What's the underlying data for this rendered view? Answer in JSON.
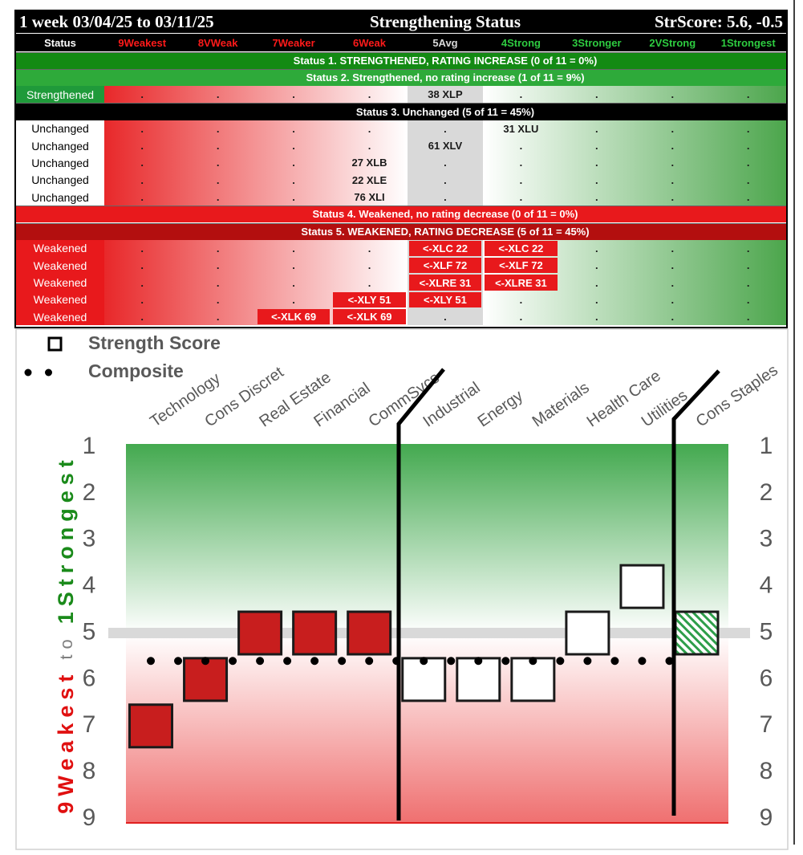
{
  "header": {
    "period": "1 week 03/04/25 to 03/11/25",
    "title": "Strengthening Status",
    "score": "StrScore: 5.6, -0.5"
  },
  "table": {
    "columns": [
      "Status",
      "9Weakest",
      "8VWeak",
      "7Weaker",
      "6Weak",
      "5Avg",
      "4Strong",
      "3Stronger",
      "2VStrong",
      "1Strongest"
    ],
    "column_colors": [
      "#ffffff",
      "#ff1a1a",
      "#ff1a1a",
      "#ff1a1a",
      "#ff1a1a",
      "#d9d9d9",
      "#2ecc40",
      "#2ecc40",
      "#2ecc40",
      "#2ecc40"
    ],
    "sections": [
      {
        "band": "Status 1. STRENGTHENED, RATING INCREASE (0 of 11 = 0%)",
        "color": "#138a13",
        "row_color": "#1f9a3a",
        "rows": []
      },
      {
        "band": "Status 2. Strengthened, no rating increase (1 of 11 = 9%)",
        "color": "#2eaa3a",
        "row_color": "#1f9a3a",
        "rows": [
          {
            "status": "Strengthened",
            "cells": [
              ".",
              ".",
              ".",
              ".",
              "38 XLP",
              ".",
              ".",
              ".",
              "."
            ]
          }
        ]
      },
      {
        "band": "Status 3. Unchanged (5 of 11 = 45%)",
        "color": "#000000",
        "row_color": "#ffffff",
        "rows": [
          {
            "status": "Unchanged",
            "cells": [
              ".",
              ".",
              ".",
              ".",
              ".",
              "31 XLU",
              ".",
              ".",
              "."
            ]
          },
          {
            "status": "Unchanged",
            "cells": [
              ".",
              ".",
              ".",
              ".",
              "61 XLV",
              ".",
              ".",
              ".",
              "."
            ]
          },
          {
            "status": "Unchanged",
            "cells": [
              ".",
              ".",
              ".",
              "27 XLB",
              ".",
              ".",
              ".",
              ".",
              "."
            ]
          },
          {
            "status": "Unchanged",
            "cells": [
              ".",
              ".",
              ".",
              "22 XLE",
              ".",
              ".",
              ".",
              ".",
              "."
            ]
          },
          {
            "status": "Unchanged",
            "cells": [
              ".",
              ".",
              ".",
              "76 XLI",
              ".",
              ".",
              ".",
              ".",
              "."
            ]
          }
        ]
      },
      {
        "band": "Status 4. Weakened, no rating decrease (0 of 11 = 0%)",
        "color": "#e8191c",
        "row_color": "#e8191c",
        "rows": []
      },
      {
        "band": "Status 5. WEAKENED, RATING DECREASE (5 of 11 = 45%)",
        "color": "#b30f0f",
        "row_color": "#e8191c",
        "rows": [
          {
            "status": "Weakened",
            "cells": [
              ".",
              ".",
              ".",
              ".",
              "<-XLC 22",
              "<-XLC 22",
              ".",
              ".",
              "."
            ]
          },
          {
            "status": "Weakened",
            "cells": [
              ".",
              ".",
              ".",
              ".",
              "<-XLF 72",
              "<-XLF 72",
              ".",
              ".",
              "."
            ]
          },
          {
            "status": "Weakened",
            "cells": [
              ".",
              ".",
              ".",
              ".",
              "<-XLRE 31",
              "<-XLRE 31",
              ".",
              ".",
              "."
            ]
          },
          {
            "status": "Weakened",
            "cells": [
              ".",
              ".",
              ".",
              "<-XLY 51",
              "<-XLY 51",
              ".",
              ".",
              ".",
              "."
            ]
          },
          {
            "status": "Weakened",
            "cells": [
              ".",
              ".",
              "<-XLK 69",
              "<-XLK 69",
              ".",
              ".",
              ".",
              ".",
              "."
            ]
          }
        ]
      }
    ]
  },
  "chart_data": {
    "type": "scatter",
    "categories": [
      "Technology",
      "Cons Discret",
      "Real Estate",
      "Financial",
      "CommSvcs",
      "Industrial",
      "Energy",
      "Materials",
      "Health Care",
      "Utilities",
      "Cons Staples"
    ],
    "series": [
      {
        "name": "Strength Score",
        "values": [
          7,
          6,
          5,
          5,
          5,
          6,
          6,
          6,
          5,
          4,
          5
        ],
        "fills": [
          "#c81e1e",
          "#c81e1e",
          "#c81e1e",
          "#c81e1e",
          "#c81e1e",
          "#ffffff",
          "#ffffff",
          "#ffffff",
          "#ffffff",
          "#ffffff",
          "hatch"
        ]
      },
      {
        "name": "Composite",
        "values": [
          5.6,
          5.6,
          5.6,
          5.6,
          5.6,
          5.6,
          5.6,
          5.6,
          5.6,
          5.6,
          5.6
        ],
        "color": "#000000"
      }
    ],
    "ylabel": [
      {
        "text": "9Weakest",
        "color": "#e01010"
      },
      {
        "text": "to",
        "color": "#7f7f7f"
      },
      {
        "text": "1Strongest",
        "color": "#1a8a1a"
      }
    ],
    "ylim": [
      1,
      9
    ],
    "y_reversed": true,
    "yticks": [
      1,
      2,
      3,
      4,
      5,
      6,
      7,
      8,
      9
    ],
    "reference_line": 5
  }
}
